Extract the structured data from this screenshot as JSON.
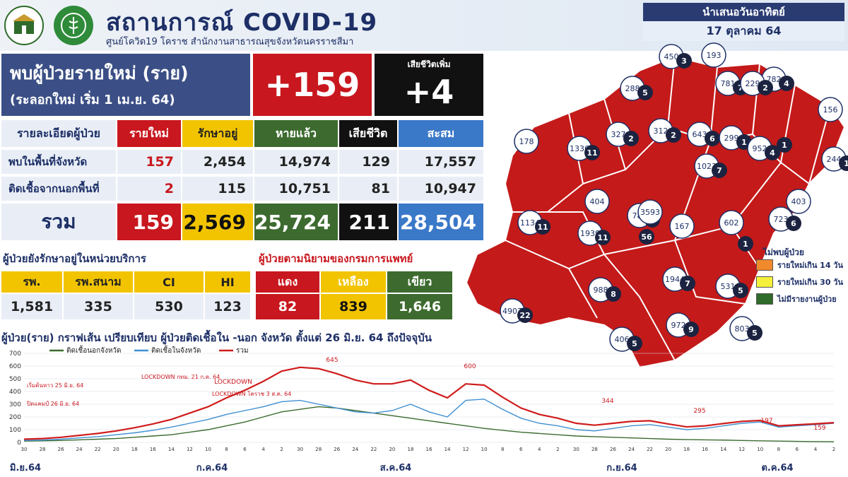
{
  "header": {
    "title": "สถานการณ์ COVID-19",
    "subtitle": "ศูนย์โควิด19 โคราช สำนักงานสาธารณสุขจังหวัดนครราชสีมา",
    "presented_label": "นำเสนอวันอาทิตย์",
    "date": "17 ตุลาคม 64"
  },
  "new_cases": {
    "label": "พบผู้ป่วยรายใหม่ (ราย)",
    "sublabel": "(ระลอกใหม่ เริ่ม 1 เม.ย. 64)",
    "value": "+159",
    "death_label": "เสียชีวิตเพิ่ม",
    "death_value": "+4"
  },
  "detail_table": {
    "headers": [
      "รายละเอียดผู้ป่วย",
      "รายใหม่",
      "รักษาอยู่",
      "หายแล้ว",
      "เสียชีวิต",
      "สะสม"
    ],
    "rows": [
      {
        "label": "พบในพื้นที่จังหวัด",
        "values": [
          "157",
          "2,454",
          "14,974",
          "129",
          "17,557"
        ]
      },
      {
        "label": "ติดเชื้อจากนอกพื้นที่",
        "values": [
          "2",
          "115",
          "10,751",
          "81",
          "10,947"
        ]
      }
    ],
    "total": {
      "label": "รวม",
      "values": [
        "159",
        "2,569",
        "25,724",
        "211",
        "28,504"
      ]
    }
  },
  "facility": {
    "title": "ผู้ป่วยยังรักษาอยู่ในหน่วยบริการ",
    "headers": [
      "รพ.",
      "รพ.สนาม",
      "CI",
      "HI"
    ],
    "values": [
      "1,581",
      "335",
      "530",
      "123"
    ]
  },
  "severity": {
    "title": "ผู้ป่วยตามนิยามของกรมการแพทย์",
    "headers": [
      "แดง",
      "เหลือง",
      "เขียว"
    ],
    "values": [
      "82",
      "839",
      "1,646"
    ]
  },
  "map": {
    "legend_title": "ไม่พบผู้ป่วย",
    "legend_items": [
      {
        "label": "รายใหม่เกิน 14 วัน",
        "color": "#f08a2c"
      },
      {
        "label": "รายใหม่เกิน 30 วัน",
        "color": "#f5f03a"
      },
      {
        "label": "ไม่มีรายงานผู้ป่วย",
        "color": "#2f6b2a"
      }
    ],
    "districts": [
      {
        "cum": "450",
        "new": "3"
      },
      {
        "cum": "193",
        "new": ""
      },
      {
        "cum": "782",
        "new": "4"
      },
      {
        "cum": "781",
        "new": "7"
      },
      {
        "cum": "229",
        "new": "2"
      },
      {
        "cum": "288",
        "new": "5"
      },
      {
        "cum": "156",
        "new": ""
      },
      {
        "cum": "178",
        "new": ""
      },
      {
        "cum": "1336",
        "new": "11"
      },
      {
        "cum": "327",
        "new": "2"
      },
      {
        "cum": "312",
        "new": "2"
      },
      {
        "cum": "643",
        "new": "6"
      },
      {
        "cum": "299",
        "new": "1"
      },
      {
        "cum": "952",
        "new": "4"
      },
      {
        "cum": "1023",
        "new": "7"
      },
      {
        "cum": "788",
        "new": "8"
      },
      {
        "cum": "",
        "new": "1"
      },
      {
        "cum": "244",
        "new": "1"
      },
      {
        "cum": "403",
        "new": ""
      },
      {
        "cum": "404",
        "new": ""
      },
      {
        "cum": "3593",
        "new": ""
      },
      {
        "cum": "167",
        "new": ""
      },
      {
        "cum": "602",
        "new": ""
      },
      {
        "cum": "723",
        "new": "6"
      },
      {
        "cum": "1134",
        "new": "11"
      },
      {
        "cum": "1939",
        "new": "11"
      },
      {
        "cum": "",
        "new": "56"
      },
      {
        "cum": "",
        "new": "1"
      },
      {
        "cum": "1944",
        "new": "7"
      },
      {
        "cum": "988",
        "new": "8"
      },
      {
        "cum": "531",
        "new": "5"
      },
      {
        "cum": "4907",
        "new": "22"
      },
      {
        "cum": "972",
        "new": "9"
      },
      {
        "cum": "803",
        "new": "5"
      },
      {
        "cum": "406",
        "new": "5"
      }
    ]
  },
  "chart_data": {
    "type": "line",
    "title": "ผู้ป่วย(ราย) กราฟเส้น เปรียบเทียบ ผู้ป่วยติดเชื้อใน -นอก จังหวัด ตั้งแต่ 26 มิ.ย. 64 ถึงปัจจุบัน",
    "ylim": [
      0,
      700
    ],
    "y_ticks": [
      "0",
      "100",
      "200",
      "300",
      "400",
      "500",
      "600",
      "700"
    ],
    "month_labels": [
      "มิ.ย.64",
      "ก.ค.64",
      "ส.ค.64",
      "ก.ย.64",
      "ต.ค.64"
    ],
    "day_labels": [
      "30",
      "28",
      "26",
      "24",
      "22",
      "20",
      "18",
      "16",
      "14",
      "12",
      "10",
      "8",
      "6",
      "4",
      "2",
      "30",
      "28",
      "26",
      "24",
      "22",
      "20",
      "18",
      "16",
      "14",
      "12",
      "10",
      "8",
      "6",
      "4",
      "2",
      "30",
      "28",
      "26",
      "24",
      "22",
      "20",
      "18",
      "16",
      "14",
      "12",
      "10",
      "8",
      "6",
      "4",
      "2"
    ],
    "series": [
      {
        "name": "ติดเชื้อนอกจังหวัด",
        "color": "#3b6b2e",
        "values": [
          10,
          12,
          15,
          20,
          25,
          30,
          40,
          50,
          60,
          80,
          100,
          130,
          160,
          200,
          240,
          260,
          280,
          270,
          250,
          230,
          210,
          190,
          170,
          150,
          130,
          110,
          95,
          80,
          70,
          60,
          50,
          45,
          40,
          35,
          30,
          25,
          22,
          20,
          18,
          15,
          12,
          10,
          8,
          6,
          5
        ]
      },
      {
        "name": "ติดเชื้อในจังหวัด",
        "color": "#3f8fd1",
        "values": [
          15,
          18,
          25,
          35,
          45,
          60,
          75,
          95,
          120,
          150,
          180,
          220,
          250,
          280,
          320,
          330,
          300,
          270,
          240,
          230,
          250,
          300,
          240,
          200,
          330,
          340,
          260,
          190,
          150,
          130,
          100,
          90,
          110,
          130,
          140,
          120,
          100,
          110,
          130,
          150,
          160,
          120,
          130,
          140,
          150
        ]
      },
      {
        "name": "รวม",
        "color": "#d01c1c",
        "values": [
          25,
          30,
          40,
          55,
          70,
          90,
          115,
          145,
          180,
          230,
          280,
          350,
          410,
          480,
          560,
          590,
          580,
          540,
          490,
          460,
          460,
          490,
          410,
          350,
          460,
          450,
          355,
          270,
          220,
          190,
          150,
          135,
          150,
          165,
          170,
          145,
          122,
          130,
          148,
          165,
          172,
          130,
          138,
          146,
          155
        ]
      }
    ],
    "point_labels": [
      "645",
      "600",
      "LOCKDOWN",
      "344",
      "295",
      "197",
      "159"
    ],
    "annotations": [
      "เริ่มต้นหาว 25 มิ.ย. 64",
      "ปิดแคมป์ 26 มิ.ย. 64",
      "LOCKDOWN กทม. 21 ก.ค. 64",
      "LOCKDOWN โคราช 3 ส.ค. 64"
    ]
  }
}
